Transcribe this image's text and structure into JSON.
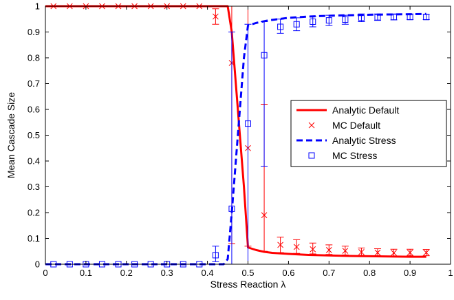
{
  "chart_data": {
    "type": "line",
    "xlabel": "Stress Reaction λ",
    "ylabel": "Mean Cascade Size",
    "xlim": [
      0,
      1
    ],
    "ylim": [
      0,
      1
    ],
    "xticks": [
      "0",
      "0.1",
      "0.2",
      "0.3",
      "0.4",
      "0.5",
      "0.6",
      "0.7",
      "0.8",
      "0.9",
      "1"
    ],
    "yticks": [
      "0",
      "0.1",
      "0.2",
      "0.3",
      "0.4",
      "0.5",
      "0.6",
      "0.7",
      "0.8",
      "0.9",
      "1"
    ],
    "grid": false,
    "legend_position": "center-right",
    "series": [
      {
        "name": "Analytic Default",
        "style": "solid-line",
        "color": "#ff0000",
        "x": [
          0.0,
          0.45,
          0.46,
          0.47,
          0.48,
          0.49,
          0.5,
          0.52,
          0.54,
          0.56,
          0.6,
          0.65,
          0.7,
          0.75,
          0.8,
          0.85,
          0.9,
          0.94
        ],
        "y": [
          1.0,
          1.0,
          0.9,
          0.7,
          0.5,
          0.3,
          0.065,
          0.055,
          0.048,
          0.044,
          0.04,
          0.036,
          0.034,
          0.032,
          0.031,
          0.03,
          0.029,
          0.029
        ]
      },
      {
        "name": "MC Default",
        "style": "x-markers",
        "color": "#ff0000",
        "points": [
          {
            "x": 0.02,
            "y": 1.0
          },
          {
            "x": 0.06,
            "y": 1.0
          },
          {
            "x": 0.1,
            "y": 1.0
          },
          {
            "x": 0.14,
            "y": 1.0
          },
          {
            "x": 0.18,
            "y": 1.0
          },
          {
            "x": 0.22,
            "y": 1.0
          },
          {
            "x": 0.26,
            "y": 1.0
          },
          {
            "x": 0.3,
            "y": 1.0
          },
          {
            "x": 0.34,
            "y": 1.0
          },
          {
            "x": 0.38,
            "y": 1.0
          },
          {
            "x": 0.42,
            "y": 0.96,
            "lo": 0.93,
            "hi": 0.99
          },
          {
            "x": 0.46,
            "y": 0.78,
            "lo": 0.08,
            "hi": 1.0
          },
          {
            "x": 0.5,
            "y": 0.45,
            "lo": 0.07,
            "hi": 1.0
          },
          {
            "x": 0.54,
            "y": 0.19,
            "lo": 0.05,
            "hi": 0.62
          },
          {
            "x": 0.58,
            "y": 0.075,
            "lo": 0.045,
            "hi": 0.105
          },
          {
            "x": 0.62,
            "y": 0.067,
            "lo": 0.042,
            "hi": 0.095
          },
          {
            "x": 0.66,
            "y": 0.058,
            "lo": 0.04,
            "hi": 0.082
          },
          {
            "x": 0.7,
            "y": 0.055,
            "lo": 0.038,
            "hi": 0.075
          },
          {
            "x": 0.74,
            "y": 0.052,
            "lo": 0.036,
            "hi": 0.07
          },
          {
            "x": 0.78,
            "y": 0.047,
            "lo": 0.034,
            "hi": 0.063
          },
          {
            "x": 0.82,
            "y": 0.045,
            "lo": 0.033,
            "hi": 0.06
          },
          {
            "x": 0.86,
            "y": 0.044,
            "lo": 0.032,
            "hi": 0.058
          },
          {
            "x": 0.9,
            "y": 0.045,
            "lo": 0.033,
            "hi": 0.058
          },
          {
            "x": 0.94,
            "y": 0.045,
            "lo": 0.033,
            "hi": 0.057
          }
        ]
      },
      {
        "name": "Analytic Stress",
        "style": "dashed-line",
        "color": "#0000ff",
        "x": [
          0.0,
          0.44,
          0.45,
          0.46,
          0.47,
          0.48,
          0.49,
          0.5,
          0.52,
          0.55,
          0.6,
          0.65,
          0.7,
          0.75,
          0.8,
          0.85,
          0.9,
          0.94
        ],
        "y": [
          0.0,
          0.0,
          0.02,
          0.2,
          0.4,
          0.6,
          0.8,
          0.925,
          0.935,
          0.945,
          0.955,
          0.96,
          0.963,
          0.965,
          0.967,
          0.968,
          0.969,
          0.97
        ]
      },
      {
        "name": "MC Stress",
        "style": "square-markers",
        "color": "#0000ff",
        "points": [
          {
            "x": 0.02,
            "y": 0.0
          },
          {
            "x": 0.06,
            "y": 0.0
          },
          {
            "x": 0.1,
            "y": 0.0
          },
          {
            "x": 0.14,
            "y": 0.0
          },
          {
            "x": 0.18,
            "y": 0.0
          },
          {
            "x": 0.22,
            "y": 0.0
          },
          {
            "x": 0.26,
            "y": 0.0
          },
          {
            "x": 0.3,
            "y": 0.0
          },
          {
            "x": 0.34,
            "y": 0.0
          },
          {
            "x": 0.38,
            "y": 0.0
          },
          {
            "x": 0.42,
            "y": 0.035,
            "lo": 0.01,
            "hi": 0.07
          },
          {
            "x": 0.46,
            "y": 0.215,
            "lo": 0.0,
            "hi": 0.9
          },
          {
            "x": 0.5,
            "y": 0.545,
            "lo": 0.0,
            "hi": 0.93
          },
          {
            "x": 0.54,
            "y": 0.81,
            "lo": 0.38,
            "hi": 0.94
          },
          {
            "x": 0.58,
            "y": 0.92,
            "lo": 0.895,
            "hi": 0.95
          },
          {
            "x": 0.62,
            "y": 0.93,
            "lo": 0.905,
            "hi": 0.955
          },
          {
            "x": 0.66,
            "y": 0.94,
            "lo": 0.92,
            "hi": 0.96
          },
          {
            "x": 0.7,
            "y": 0.945,
            "lo": 0.925,
            "hi": 0.965
          },
          {
            "x": 0.74,
            "y": 0.948,
            "lo": 0.93,
            "hi": 0.965
          },
          {
            "x": 0.78,
            "y": 0.955,
            "lo": 0.94,
            "hi": 0.97
          },
          {
            "x": 0.82,
            "y": 0.957,
            "lo": 0.945,
            "hi": 0.97
          },
          {
            "x": 0.86,
            "y": 0.958,
            "lo": 0.947,
            "hi": 0.97
          },
          {
            "x": 0.9,
            "y": 0.958,
            "lo": 0.948,
            "hi": 0.97
          },
          {
            "x": 0.94,
            "y": 0.958,
            "lo": 0.948,
            "hi": 0.968
          }
        ]
      }
    ]
  }
}
